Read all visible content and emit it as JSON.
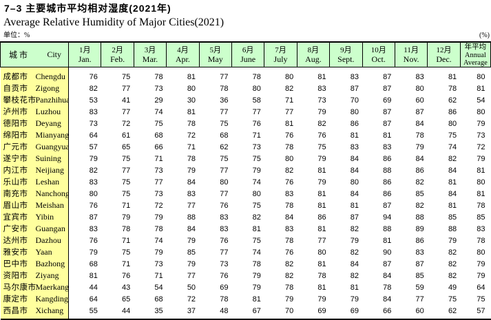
{
  "page": {
    "title_cn": "7–3  主要城市平均相对湿度(2021年)",
    "title_en": "Average Relative Humidity of Major Cities(2021)",
    "unit_left": "单位：%",
    "unit_right": "(%)"
  },
  "colors": {
    "header_bg": "#CCFFCC",
    "city_column_bg": "#FFFF9E",
    "border": "#000000"
  },
  "table": {
    "city_header": {
      "cn": "城 市",
      "en": "City"
    },
    "columns": [
      {
        "cn": "1月",
        "en": "Jan."
      },
      {
        "cn": "2月",
        "en": "Feb."
      },
      {
        "cn": "3月",
        "en": "Mar."
      },
      {
        "cn": "4月",
        "en": "Apr."
      },
      {
        "cn": "5月",
        "en": "May"
      },
      {
        "cn": "6月",
        "en": "June"
      },
      {
        "cn": "7月",
        "en": "July"
      },
      {
        "cn": "8月",
        "en": "Aug."
      },
      {
        "cn": "9月",
        "en": "Sept."
      },
      {
        "cn": "10月",
        "en": "Oct."
      },
      {
        "cn": "11月",
        "en": "Nov."
      },
      {
        "cn": "12月",
        "en": "Dec."
      },
      {
        "cn": "年平均",
        "en": "Annual Average"
      }
    ],
    "rows": [
      {
        "cn": "成都市",
        "en": "Chengdu",
        "values": [
          76,
          75,
          78,
          81,
          77,
          78,
          80,
          81,
          83,
          87,
          83,
          81,
          80
        ]
      },
      {
        "cn": "自贡市",
        "en": "Zigong",
        "values": [
          82,
          77,
          73,
          80,
          78,
          80,
          82,
          83,
          87,
          87,
          80,
          78,
          81
        ]
      },
      {
        "cn": "攀枝花市",
        "en": "Panzhihua",
        "values": [
          53,
          41,
          29,
          30,
          36,
          58,
          71,
          73,
          70,
          69,
          60,
          62,
          54
        ]
      },
      {
        "cn": "泸州市",
        "en": "Luzhou",
        "values": [
          83,
          77,
          74,
          81,
          77,
          77,
          77,
          79,
          80,
          87,
          87,
          86,
          80
        ]
      },
      {
        "cn": "德阳市",
        "en": "Deyang",
        "values": [
          73,
          72,
          75,
          78,
          75,
          76,
          81,
          82,
          86,
          87,
          84,
          80,
          79
        ]
      },
      {
        "cn": "绵阳市",
        "en": "Mianyang",
        "values": [
          64,
          61,
          68,
          72,
          68,
          71,
          76,
          76,
          81,
          81,
          78,
          75,
          73
        ]
      },
      {
        "cn": "广元市",
        "en": "Guangyuan",
        "values": [
          57,
          65,
          66,
          71,
          62,
          73,
          78,
          75,
          83,
          83,
          79,
          74,
          72
        ]
      },
      {
        "cn": "遂宁市",
        "en": "Suining",
        "values": [
          79,
          75,
          71,
          78,
          75,
          75,
          80,
          79,
          84,
          86,
          84,
          82,
          79
        ]
      },
      {
        "cn": "内江市",
        "en": "Neijiang",
        "values": [
          82,
          77,
          73,
          79,
          77,
          79,
          82,
          81,
          84,
          88,
          86,
          84,
          81
        ]
      },
      {
        "cn": "乐山市",
        "en": "Leshan",
        "values": [
          83,
          75,
          77,
          84,
          80,
          74,
          76,
          79,
          80,
          86,
          82,
          81,
          80
        ]
      },
      {
        "cn": "南充市",
        "en": "Nanchong",
        "values": [
          80,
          75,
          73,
          83,
          77,
          80,
          83,
          81,
          84,
          86,
          85,
          84,
          81
        ]
      },
      {
        "cn": "眉山市",
        "en": "Meishan",
        "values": [
          76,
          71,
          72,
          77,
          76,
          75,
          78,
          81,
          81,
          87,
          82,
          81,
          78
        ]
      },
      {
        "cn": "宜宾市",
        "en": "Yibin",
        "values": [
          87,
          79,
          79,
          88,
          83,
          82,
          84,
          86,
          87,
          94,
          88,
          85,
          85
        ]
      },
      {
        "cn": "广安市",
        "en": "Guangan",
        "values": [
          83,
          78,
          78,
          84,
          83,
          81,
          83,
          81,
          82,
          88,
          89,
          88,
          83
        ]
      },
      {
        "cn": "达州市",
        "en": "Dazhou",
        "values": [
          76,
          71,
          74,
          79,
          76,
          75,
          78,
          77,
          79,
          81,
          86,
          79,
          78
        ]
      },
      {
        "cn": "雅安市",
        "en": "Yaan",
        "values": [
          79,
          75,
          79,
          85,
          77,
          74,
          76,
          80,
          82,
          90,
          83,
          82,
          80
        ]
      },
      {
        "cn": "巴中市",
        "en": "Bazhong",
        "values": [
          68,
          71,
          73,
          79,
          73,
          78,
          82,
          81,
          84,
          87,
          87,
          82,
          79
        ]
      },
      {
        "cn": "资阳市",
        "en": "Ziyang",
        "values": [
          81,
          76,
          71,
          77,
          76,
          79,
          82,
          78,
          82,
          84,
          85,
          82,
          79
        ]
      },
      {
        "cn": "马尔康市",
        "en": "Maerkang",
        "values": [
          44,
          43,
          54,
          50,
          69,
          79,
          78,
          81,
          81,
          78,
          59,
          49,
          64
        ]
      },
      {
        "cn": "康定市",
        "en": "Kangding",
        "values": [
          64,
          65,
          68,
          72,
          78,
          81,
          79,
          79,
          79,
          84,
          77,
          75,
          75
        ]
      },
      {
        "cn": "西昌市",
        "en": "Xichang",
        "values": [
          55,
          44,
          35,
          37,
          48,
          67,
          70,
          69,
          69,
          66,
          60,
          62,
          57
        ]
      }
    ]
  }
}
